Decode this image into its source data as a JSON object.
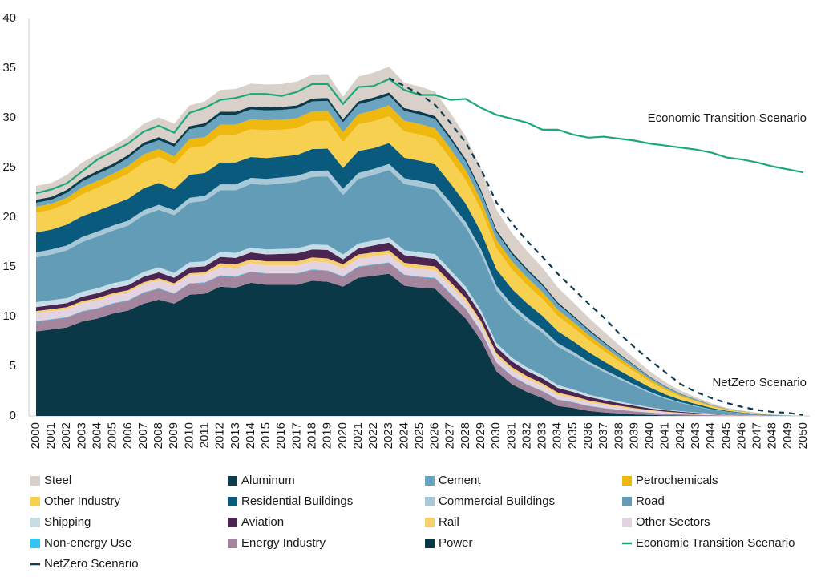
{
  "chart_data": {
    "type": "stacked_area",
    "annotations": [
      {
        "text": "Economic Transition Scenario",
        "x": "2050",
        "y": 29.9
      },
      {
        "text": "NetZero Scenario",
        "x": "2050",
        "y": 3.3
      }
    ],
    "categories": [
      "2000",
      "2001",
      "2002",
      "2003",
      "2004",
      "2005",
      "2006",
      "2007",
      "2008",
      "2009",
      "2010",
      "2011",
      "2012",
      "2013",
      "2014",
      "2015",
      "2016",
      "2017",
      "2018",
      "2019",
      "2020",
      "2021",
      "2022",
      "2023",
      "2024",
      "2025",
      "2026",
      "2027",
      "2028",
      "2029",
      "2030",
      "2031",
      "2032",
      "2033",
      "2034",
      "2035",
      "2036",
      "2037",
      "2038",
      "2039",
      "2040",
      "2041",
      "2042",
      "2043",
      "2044",
      "2045",
      "2046",
      "2047",
      "2048",
      "2049",
      "2050"
    ],
    "ylim": [
      0,
      40
    ],
    "yticks": [
      0,
      5,
      10,
      15,
      20,
      25,
      30,
      35,
      40
    ],
    "series": [
      {
        "name": "Steel",
        "color": "#d9d1c9",
        "values": [
          1.4,
          1.4,
          1.5,
          1.6,
          1.7,
          1.8,
          1.8,
          1.9,
          2.0,
          2.0,
          2.1,
          2.2,
          2.2,
          2.3,
          2.3,
          2.3,
          2.3,
          2.4,
          2.4,
          2.4,
          2.3,
          2.5,
          2.5,
          2.6,
          2.55,
          2.52,
          2.47,
          2.39,
          2.29,
          2.16,
          2.03,
          1.9,
          1.77,
          1.64,
          1.48,
          1.33,
          1.17,
          1.01,
          0.86,
          0.7,
          0.55,
          0.42,
          0.31,
          0.23,
          0.16,
          0.1,
          0.07,
          0.04,
          0.02,
          0.01,
          0
        ]
      },
      {
        "name": "Aluminum",
        "color": "#0b3b4d",
        "values": [
          0.3,
          0.3,
          0.3,
          0.3,
          0.3,
          0.3,
          0.3,
          0.3,
          0.3,
          0.3,
          0.3,
          0.3,
          0.3,
          0.3,
          0.3,
          0.3,
          0.3,
          0.3,
          0.3,
          0.3,
          0.3,
          0.3,
          0.3,
          0.3,
          0.29,
          0.29,
          0.29,
          0.28,
          0.26,
          0.25,
          0.23,
          0.22,
          0.2,
          0.19,
          0.17,
          0.15,
          0.14,
          0.12,
          0.1,
          0.08,
          0.06,
          0.05,
          0.04,
          0.03,
          0.02,
          0.01,
          0.01,
          0,
          0,
          0,
          0
        ]
      },
      {
        "name": "Cement",
        "color": "#6ba4bf",
        "values": [
          0.4,
          0.4,
          0.5,
          0.6,
          0.7,
          0.7,
          0.8,
          0.9,
          0.9,
          1.0,
          1.0,
          1.1,
          1.0,
          1.0,
          1.0,
          1.0,
          1.0,
          1.0,
          1.0,
          1.0,
          1.0,
          1.0,
          1.0,
          1.0,
          0.98,
          0.97,
          0.95,
          0.92,
          0.88,
          0.83,
          0.78,
          0.73,
          0.68,
          0.63,
          0.57,
          0.51,
          0.45,
          0.39,
          0.33,
          0.27,
          0.21,
          0.16,
          0.12,
          0.09,
          0.06,
          0.04,
          0.03,
          0.02,
          0.01,
          0,
          0
        ]
      },
      {
        "name": "Petrochemicals",
        "color": "#efb80e",
        "values": [
          0.6,
          0.6,
          0.6,
          0.7,
          0.7,
          0.7,
          0.8,
          0.8,
          0.8,
          0.8,
          0.9,
          0.9,
          1.0,
          1.0,
          1.0,
          1.0,
          1.0,
          1.0,
          1.0,
          1.0,
          1.0,
          1.0,
          1.1,
          1.1,
          1.08,
          1.07,
          1.05,
          1.01,
          0.97,
          0.91,
          0.86,
          0.8,
          0.75,
          0.69,
          0.63,
          0.56,
          0.5,
          0.43,
          0.36,
          0.3,
          0.23,
          0.18,
          0.13,
          0.1,
          0.07,
          0.04,
          0.03,
          0.02,
          0.01,
          0,
          0
        ]
      },
      {
        "name": "Other Industry",
        "color": "#f8d050",
        "values": [
          2.0,
          2.0,
          2.1,
          2.2,
          2.3,
          2.4,
          2.5,
          2.6,
          2.6,
          2.5,
          2.7,
          2.7,
          2.8,
          2.8,
          2.8,
          2.8,
          2.7,
          2.7,
          2.8,
          2.8,
          2.6,
          2.7,
          2.7,
          2.7,
          2.65,
          2.62,
          2.57,
          2.48,
          2.38,
          2.24,
          2.11,
          1.97,
          1.84,
          1.7,
          1.54,
          1.38,
          1.22,
          1.05,
          0.89,
          0.73,
          0.57,
          0.43,
          0.32,
          0.24,
          0.16,
          0.11,
          0.07,
          0.04,
          0.02,
          0.01,
          0
        ]
      },
      {
        "name": "Residential Buildings",
        "color": "#0a5a7e",
        "values": [
          2.0,
          2.0,
          2.1,
          2.1,
          2.1,
          2.1,
          2.2,
          2.2,
          2.2,
          2.1,
          2.3,
          2.3,
          2.2,
          2.2,
          2.1,
          2.1,
          2.1,
          2.1,
          2.2,
          2.2,
          2.1,
          2.2,
          2.1,
          2.1,
          2.06,
          2.04,
          2.0,
          1.93,
          1.85,
          1.74,
          1.64,
          1.53,
          1.43,
          1.32,
          1.2,
          1.07,
          0.95,
          0.82,
          0.69,
          0.57,
          0.44,
          0.34,
          0.25,
          0.19,
          0.13,
          0.08,
          0.05,
          0.03,
          0.02,
          0.01,
          0
        ]
      },
      {
        "name": "Commercial Buildings",
        "color": "#a8c8d7",
        "values": [
          0.5,
          0.5,
          0.5,
          0.5,
          0.5,
          0.5,
          0.5,
          0.5,
          0.5,
          0.5,
          0.5,
          0.5,
          0.6,
          0.6,
          0.6,
          0.6,
          0.6,
          0.6,
          0.6,
          0.6,
          0.6,
          0.6,
          0.6,
          0.6,
          0.59,
          0.58,
          0.57,
          0.55,
          0.53,
          0.5,
          0.47,
          0.44,
          0.41,
          0.38,
          0.34,
          0.31,
          0.27,
          0.23,
          0.2,
          0.16,
          0.13,
          0.1,
          0.07,
          0.05,
          0.04,
          0.02,
          0.02,
          0.01,
          0,
          0,
          0
        ]
      },
      {
        "name": "Road",
        "color": "#639cb6",
        "values": [
          4.5,
          4.6,
          4.8,
          5.0,
          5.2,
          5.3,
          5.5,
          5.7,
          5.8,
          5.8,
          6.0,
          6.1,
          6.2,
          6.3,
          6.4,
          6.5,
          6.6,
          6.7,
          6.8,
          6.9,
          6.0,
          6.5,
          6.6,
          6.8,
          6.66,
          6.6,
          6.46,
          6.26,
          5.98,
          5.64,
          5.3,
          4.96,
          4.62,
          4.28,
          3.88,
          3.47,
          3.06,
          2.65,
          2.24,
          1.84,
          1.43,
          1.09,
          0.82,
          0.61,
          0.41,
          0.27,
          0.17,
          0.1,
          0.05,
          0.03,
          0
        ]
      },
      {
        "name": "Shipping",
        "color": "#c6dde8",
        "values": [
          0.5,
          0.5,
          0.5,
          0.5,
          0.5,
          0.5,
          0.5,
          0.5,
          0.5,
          0.5,
          0.5,
          0.5,
          0.5,
          0.5,
          0.5,
          0.5,
          0.5,
          0.5,
          0.5,
          0.5,
          0.5,
          0.5,
          0.5,
          0.5,
          0.49,
          0.49,
          0.48,
          0.46,
          0.44,
          0.42,
          0.39,
          0.37,
          0.34,
          0.32,
          0.29,
          0.26,
          0.23,
          0.2,
          0.17,
          0.14,
          0.11,
          0.08,
          0.06,
          0.05,
          0.03,
          0.02,
          0.01,
          0.01,
          0,
          0,
          0
        ]
      },
      {
        "name": "Aviation",
        "color": "#4b2452",
        "values": [
          0.4,
          0.4,
          0.4,
          0.45,
          0.5,
          0.5,
          0.5,
          0.55,
          0.6,
          0.55,
          0.6,
          0.6,
          0.65,
          0.65,
          0.7,
          0.7,
          0.75,
          0.8,
          0.8,
          0.85,
          0.5,
          0.6,
          0.7,
          0.8,
          0.78,
          0.78,
          0.76,
          0.74,
          0.7,
          0.66,
          0.62,
          0.58,
          0.54,
          0.5,
          0.46,
          0.41,
          0.36,
          0.31,
          0.26,
          0.22,
          0.17,
          0.13,
          0.1,
          0.07,
          0.05,
          0.03,
          0.02,
          0.01,
          0.01,
          0,
          0
        ]
      },
      {
        "name": "Rail",
        "color": "#f6cf6e",
        "values": [
          0.2,
          0.2,
          0.2,
          0.2,
          0.2,
          0.2,
          0.2,
          0.2,
          0.2,
          0.2,
          0.2,
          0.2,
          0.4,
          0.4,
          0.4,
          0.4,
          0.4,
          0.4,
          0.4,
          0.4,
          0.4,
          0.4,
          0.4,
          0.4,
          0.39,
          0.39,
          0.38,
          0.37,
          0.35,
          0.33,
          0.31,
          0.29,
          0.27,
          0.25,
          0.23,
          0.2,
          0.18,
          0.16,
          0.13,
          0.11,
          0.08,
          0.06,
          0.05,
          0.04,
          0.02,
          0.02,
          0.01,
          0.01,
          0,
          0,
          0
        ]
      },
      {
        "name": "Other Sectors",
        "color": "#e4d4e1",
        "values": [
          0.8,
          0.8,
          0.8,
          0.8,
          0.8,
          0.8,
          0.8,
          0.8,
          0.8,
          0.8,
          0.8,
          0.8,
          0.8,
          0.8,
          0.8,
          0.8,
          0.8,
          0.8,
          0.8,
          0.8,
          0.8,
          0.8,
          0.8,
          0.8,
          0.78,
          0.78,
          0.76,
          0.74,
          0.7,
          0.66,
          0.62,
          0.58,
          0.54,
          0.5,
          0.46,
          0.41,
          0.36,
          0.31,
          0.26,
          0.22,
          0.17,
          0.13,
          0.1,
          0.07,
          0.05,
          0.03,
          0.02,
          0.01,
          0.01,
          0,
          0
        ]
      },
      {
        "name": "Non-energy Use",
        "color": "#2ec6f5",
        "values": [
          0.05,
          0.05,
          0.05,
          0.05,
          0.05,
          0.05,
          0.05,
          0.05,
          0.05,
          0.05,
          0.05,
          0.05,
          0.05,
          0.05,
          0.05,
          0.05,
          0.05,
          0.05,
          0.05,
          0.05,
          0.05,
          0.05,
          0.05,
          0.05,
          0.05,
          0.05,
          0.05,
          0.05,
          0.04,
          0.04,
          0.04,
          0.04,
          0.03,
          0.03,
          0.03,
          0.03,
          0.02,
          0.02,
          0.02,
          0.01,
          0.01,
          0.01,
          0.01,
          0,
          0,
          0,
          0,
          0,
          0,
          0,
          0
        ]
      },
      {
        "name": "Energy Industry",
        "color": "#a3869e",
        "values": [
          1.0,
          1.0,
          1.0,
          1.0,
          1.0,
          1.0,
          1.0,
          1.1,
          1.1,
          1.0,
          1.1,
          1.1,
          1.1,
          1.1,
          1.1,
          1.1,
          1.1,
          1.1,
          1.1,
          1.1,
          1.0,
          1.1,
          1.1,
          1.1,
          1.08,
          1.07,
          1.05,
          1.01,
          0.97,
          0.91,
          0.86,
          0.8,
          0.75,
          0.69,
          0.63,
          0.56,
          0.5,
          0.43,
          0.36,
          0.3,
          0.23,
          0.18,
          0.13,
          0.1,
          0.07,
          0.04,
          0.03,
          0.02,
          0.01,
          0,
          0
        ]
      },
      {
        "name": "Power",
        "color": "#0a3847",
        "values": [
          8.5,
          8.7,
          8.9,
          9.5,
          9.8,
          10.3,
          10.6,
          11.3,
          11.7,
          11.3,
          12.2,
          12.3,
          13.0,
          12.9,
          13.4,
          13.2,
          13.2,
          13.2,
          13.6,
          13.5,
          13.0,
          13.9,
          14.1,
          14.3,
          13.1,
          12.9,
          12.8,
          11.3,
          9.8,
          7.6,
          4.5,
          3.2,
          2.4,
          1.8,
          1.0,
          0.8,
          0.5,
          0.35,
          0.25,
          0.15,
          0.1,
          0.05,
          0.03,
          0.02,
          0.01,
          0,
          0,
          0,
          0,
          0,
          0
        ]
      },
      {
        "name": "Economic Transition Scenario",
        "color": "#1ca77b",
        "type": "line",
        "values": [
          22.4,
          22.8,
          23.4,
          24.6,
          25.8,
          26.6,
          27.4,
          28.6,
          29.2,
          28.5,
          30.5,
          31.0,
          31.8,
          32.0,
          32.4,
          32.4,
          32.2,
          32.6,
          33.4,
          33.4,
          31.4,
          33.1,
          33.2,
          33.9,
          32.8,
          32.3,
          32.3,
          31.8,
          31.9,
          31.0,
          30.3,
          29.9,
          29.5,
          28.8,
          28.8,
          28.3,
          28.0,
          28.1,
          27.9,
          27.7,
          27.4,
          27.2,
          27.0,
          26.8,
          26.5,
          26.0,
          25.8,
          25.5,
          25.1,
          24.8,
          24.5
        ]
      },
      {
        "name": "NetZero Scenario",
        "color": "#0d3b4f",
        "type": "line",
        "dash": true,
        "values": [
          null,
          null,
          null,
          null,
          null,
          null,
          null,
          null,
          null,
          null,
          null,
          null,
          null,
          null,
          null,
          null,
          null,
          null,
          null,
          null,
          null,
          null,
          null,
          34.0,
          33.2,
          32.4,
          31.3,
          29.5,
          27.5,
          24.8,
          21.5,
          19.4,
          17.6,
          16.0,
          14.3,
          12.8,
          11.3,
          9.9,
          8.3,
          6.9,
          5.6,
          4.4,
          3.2,
          2.4,
          1.8,
          1.3,
          0.9,
          0.6,
          0.4,
          0.3,
          0.1
        ]
      }
    ]
  }
}
